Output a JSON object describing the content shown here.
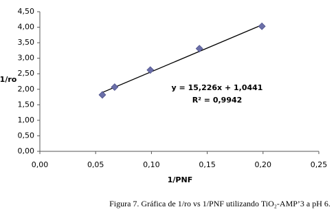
{
  "chart_data": {
    "type": "scatter",
    "x_label": "1/PNF",
    "y_label": "1/ro",
    "caption": "Figura 7. Gráfica de 1/ro vs 1/PNF utilizando TiO₂-AMP’3 a pH 6.",
    "series": [
      {
        "color": "#6b6fa8",
        "x": [
          0.056,
          0.067,
          0.099,
          0.143,
          0.199
        ],
        "values": [
          1.82,
          2.07,
          2.62,
          3.31,
          4.03
        ]
      }
    ],
    "trendline": {
      "slope": 15.226,
      "intercept": 1.0441,
      "label": "y = 15,226x + 1,0441",
      "r2_label": "R² = 0,9942"
    },
    "xlim": [
      0,
      0.25
    ],
    "xticks": [
      {
        "value": 0,
        "label": "0,00"
      },
      {
        "value": 0.05,
        "label": "0,05"
      },
      {
        "value": 0.1,
        "label": "0,10"
      },
      {
        "value": 0.15,
        "label": "0,15"
      },
      {
        "value": 0.2,
        "label": "0,20"
      },
      {
        "value": 0.25,
        "label": "0,25"
      }
    ],
    "ylim": [
      0,
      4.5
    ],
    "yticks": [
      {
        "value": 0,
        "label": "0,00"
      },
      {
        "value": 0.5,
        "label": "0,50"
      },
      {
        "value": 1,
        "label": "1,00"
      },
      {
        "value": 1.5,
        "label": "1,50"
      },
      {
        "value": 2,
        "label": "2,00"
      },
      {
        "value": 2.5,
        "label": "2,50"
      },
      {
        "value": 3,
        "label": "3,00"
      },
      {
        "value": 3.5,
        "label": "3,50"
      },
      {
        "value": 4,
        "label": "4,00"
      },
      {
        "value": 4.5,
        "label": "4,50"
      }
    ],
    "grid": false
  }
}
